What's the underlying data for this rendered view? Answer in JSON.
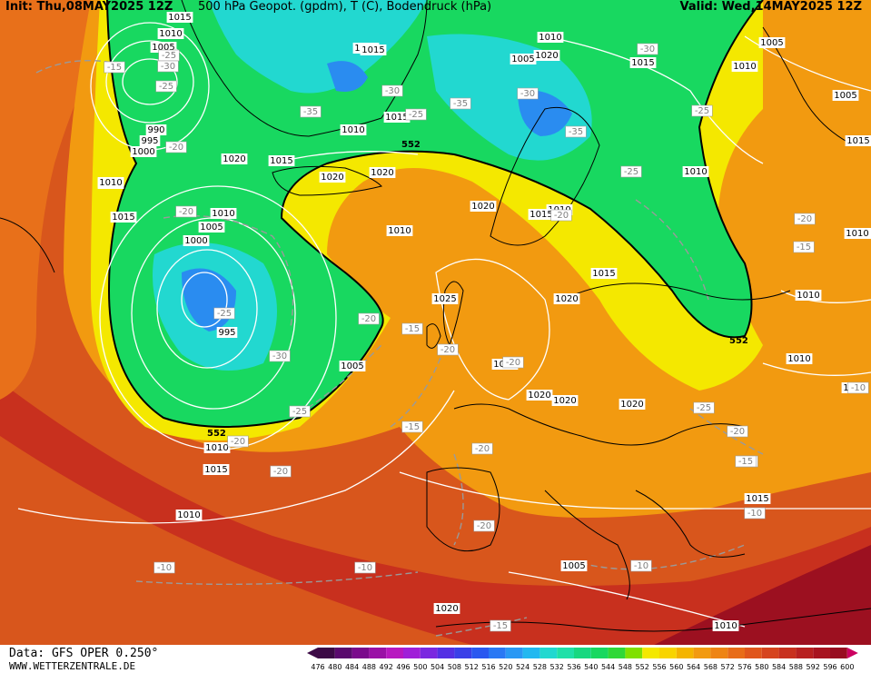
{
  "header": {
    "init": "Init: Thu,08MAY2025 12Z",
    "title": "500 hPa Geopot. (gpdm), T (C), Bodendruck (hPa)",
    "valid": "Valid: Wed,14MAY2025 12Z"
  },
  "footer": {
    "data_source": "Data: GFS OPER 0.250°",
    "website": "WWW.WETTERZENTRALE.DE"
  },
  "colors": {
    "green": "#18d860",
    "cyan": "#22d8d0",
    "blue": "#2a8cf0",
    "yellow": "#f4e800",
    "orange": "#f29a10",
    "deep_orange": "#e26a1a",
    "red": "#c8301e",
    "dark_red": "#9c1020",
    "isobar": "#ffffff",
    "isotherm": "#a0a0a0",
    "coast": "#000000"
  },
  "pressure_labels": [
    "1015",
    "1010",
    "1005",
    "990",
    "995",
    "1000",
    "1010",
    "1015",
    "1020",
    "1015",
    "1010",
    "1005",
    "1000",
    "995",
    "1005",
    "1010",
    "1015",
    "1020",
    "1020",
    "1015",
    "1010",
    "1020",
    "1020",
    "1015",
    "1025",
    "1025",
    "1020",
    "1020",
    "1020",
    "1010",
    "1005",
    "1010",
    "1015",
    "1010",
    "1005",
    "1010",
    "1005",
    "1015",
    "1015",
    "1010",
    "1010",
    "1010",
    "1010",
    "1015",
    "1005",
    "1015",
    "1010",
    "1020",
    "1005",
    "1010",
    "1020",
    "1015",
    "1010",
    "1010"
  ],
  "temperature_labels": [
    "-15",
    "-20",
    "-25",
    "-35",
    "-30",
    "-30",
    "-25",
    "-35",
    "-25",
    "-30",
    "-35",
    "-30",
    "-25",
    "-25",
    "-20",
    "-20",
    "-15",
    "-25",
    "-30",
    "-25",
    "-20",
    "-20",
    "-15",
    "-20",
    "-20",
    "-25",
    "-20",
    "-15",
    "-20",
    "-15",
    "-10",
    "-10",
    "-10",
    "-10",
    "-15",
    "-20",
    "-20",
    "-10",
    "-15",
    "-20"
  ],
  "contour_552_label": "552",
  "scale": {
    "labels": [
      "476",
      "480",
      "484",
      "488",
      "492",
      "496",
      "500",
      "504",
      "508",
      "512",
      "516",
      "520",
      "524",
      "528",
      "532",
      "536",
      "540",
      "544",
      "548",
      "552",
      "556",
      "560",
      "564",
      "568",
      "572",
      "576",
      "580",
      "584",
      "588",
      "592",
      "596",
      "600"
    ],
    "colors": [
      "#3c0a46",
      "#5a0a6e",
      "#7a0a8c",
      "#9a10a6",
      "#b818c0",
      "#a020d8",
      "#7a28e0",
      "#5430e4",
      "#3a40e8",
      "#2a58f0",
      "#2a78f4",
      "#2a98f4",
      "#22b8f0",
      "#22d8d0",
      "#20e0a8",
      "#18d880",
      "#18d860",
      "#30d838",
      "#80e000",
      "#f4e800",
      "#f8d400",
      "#f4b400",
      "#f29a10",
      "#ee8414",
      "#e86c18",
      "#e0561c",
      "#d6441e",
      "#c8301e",
      "#b82020",
      "#a81420",
      "#980c20",
      "#cc0060"
    ]
  }
}
